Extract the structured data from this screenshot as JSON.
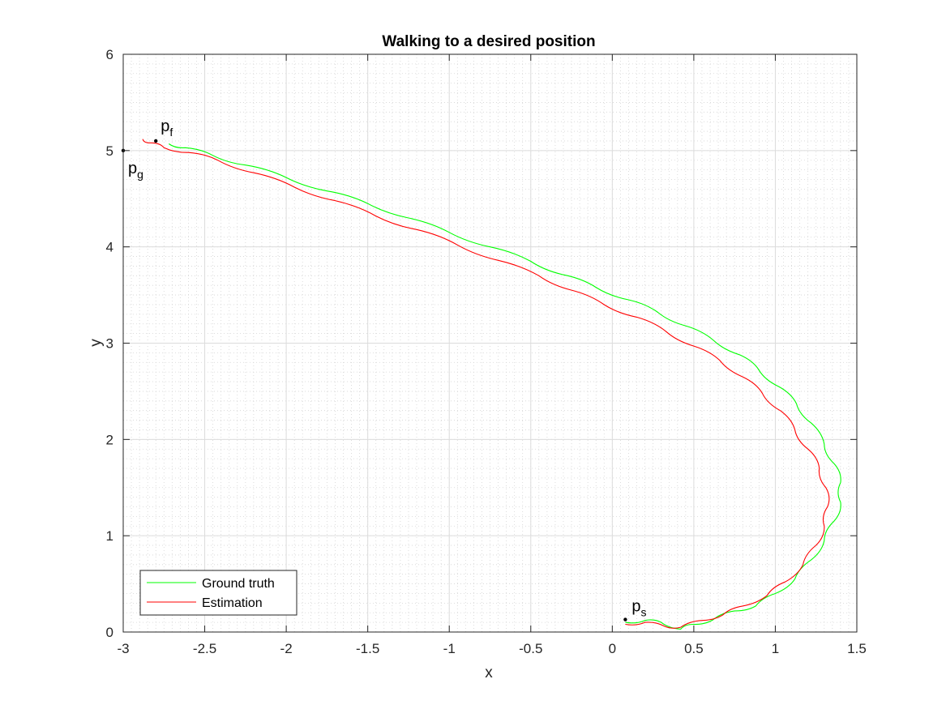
{
  "chart_data": {
    "type": "line",
    "title": "Walking to a desired position",
    "xlabel": "x",
    "ylabel": "y",
    "xlim": [
      -3,
      1.5
    ],
    "ylim": [
      0,
      6
    ],
    "xticks": [
      "-3",
      "-2.5",
      "-2",
      "-1.5",
      "-1",
      "-0.5",
      "0",
      "0.5",
      "1",
      "1.5"
    ],
    "yticks": [
      "0",
      "1",
      "2",
      "3",
      "4",
      "5",
      "6"
    ],
    "grid": true,
    "minor_grid": true,
    "legend": "bottom-left",
    "series": [
      {
        "name": "Ground truth",
        "color": "#00ff00",
        "points": [
          [
            0.08,
            0.1
          ],
          [
            0.2,
            0.12
          ],
          [
            0.3,
            0.1
          ],
          [
            0.42,
            0.03
          ],
          [
            0.5,
            0.08
          ],
          [
            0.62,
            0.13
          ],
          [
            0.75,
            0.22
          ],
          [
            0.88,
            0.27
          ],
          [
            1.0,
            0.4
          ],
          [
            1.12,
            0.55
          ],
          [
            1.22,
            0.75
          ],
          [
            1.3,
            0.95
          ],
          [
            1.36,
            1.15
          ],
          [
            1.4,
            1.35
          ],
          [
            1.4,
            1.55
          ],
          [
            1.36,
            1.75
          ],
          [
            1.3,
            1.95
          ],
          [
            1.22,
            2.17
          ],
          [
            1.13,
            2.37
          ],
          [
            1.02,
            2.55
          ],
          [
            0.9,
            2.72
          ],
          [
            0.78,
            2.88
          ],
          [
            0.62,
            3.03
          ],
          [
            0.45,
            3.18
          ],
          [
            0.28,
            3.32
          ],
          [
            0.1,
            3.45
          ],
          [
            -0.1,
            3.58
          ],
          [
            -0.3,
            3.71
          ],
          [
            -0.5,
            3.85
          ],
          [
            -0.75,
            4.0
          ],
          [
            -1.0,
            4.15
          ],
          [
            -1.25,
            4.3
          ],
          [
            -1.5,
            4.45
          ],
          [
            -1.75,
            4.58
          ],
          [
            -2.0,
            4.72
          ],
          [
            -2.25,
            4.85
          ],
          [
            -2.45,
            4.95
          ],
          [
            -2.62,
            5.03
          ],
          [
            -2.72,
            5.07
          ]
        ]
      },
      {
        "name": "Estimation",
        "color": "#ff0000",
        "points": [
          [
            0.08,
            0.08
          ],
          [
            0.2,
            0.1
          ],
          [
            0.32,
            0.06
          ],
          [
            0.42,
            0.05
          ],
          [
            0.55,
            0.12
          ],
          [
            0.68,
            0.18
          ],
          [
            0.8,
            0.27
          ],
          [
            0.95,
            0.38
          ],
          [
            1.06,
            0.52
          ],
          [
            1.17,
            0.7
          ],
          [
            1.25,
            0.9
          ],
          [
            1.3,
            1.1
          ],
          [
            1.32,
            1.3
          ],
          [
            1.31,
            1.5
          ],
          [
            1.27,
            1.7
          ],
          [
            1.2,
            1.9
          ],
          [
            1.12,
            2.1
          ],
          [
            1.03,
            2.3
          ],
          [
            0.92,
            2.48
          ],
          [
            0.8,
            2.65
          ],
          [
            0.66,
            2.82
          ],
          [
            0.5,
            2.97
          ],
          [
            0.33,
            3.12
          ],
          [
            0.15,
            3.27
          ],
          [
            -0.05,
            3.4
          ],
          [
            -0.25,
            3.55
          ],
          [
            -0.45,
            3.7
          ],
          [
            -0.7,
            3.86
          ],
          [
            -0.95,
            4.02
          ],
          [
            -1.2,
            4.18
          ],
          [
            -1.45,
            4.32
          ],
          [
            -1.7,
            4.48
          ],
          [
            -1.95,
            4.62
          ],
          [
            -2.2,
            4.77
          ],
          [
            -2.42,
            4.9
          ],
          [
            -2.6,
            4.98
          ],
          [
            -2.75,
            5.03
          ],
          [
            -2.83,
            5.08
          ],
          [
            -2.88,
            5.12
          ]
        ]
      }
    ],
    "markers": [
      {
        "label": "p",
        "sub": "f",
        "x": -2.8,
        "y": 5.1
      },
      {
        "label": "p",
        "sub": "g",
        "x": -3.0,
        "y": 5.0
      },
      {
        "label": "p",
        "sub": "s",
        "x": 0.08,
        "y": 0.13
      }
    ]
  }
}
